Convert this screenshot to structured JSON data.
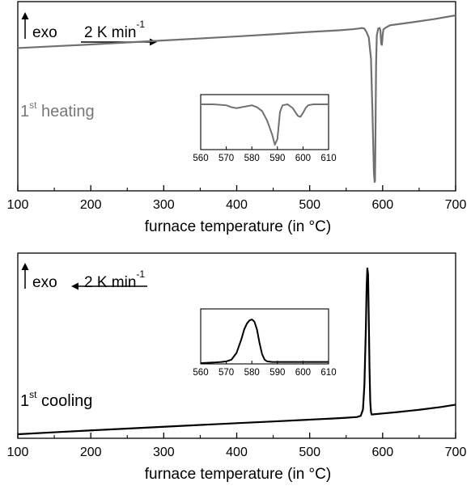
{
  "chart_data": [
    {
      "type": "line",
      "xlabel": "furnace temperature (in °C)",
      "xlim": [
        100,
        700
      ],
      "xticks": [
        100,
        200,
        300,
        400,
        500,
        600,
        700
      ],
      "y_ticks_shown": false,
      "annotations": {
        "exo": "exo",
        "rate_value": "2 K min",
        "rate_exponent": "-1",
        "rate_direction": "right",
        "run_number": "1",
        "run_ordinal": "st",
        "run_name": " heating"
      },
      "series_color": "#707070",
      "series": [
        {
          "x": [
            100,
            150,
            200,
            250,
            300,
            350,
            400,
            450,
            500,
            540,
            560,
            568,
            572,
            575,
            578,
            581,
            584,
            586,
            588,
            589,
            589.5,
            590,
            591,
            592,
            594,
            596,
            597,
            598,
            599,
            600,
            601,
            603,
            605,
            610,
            640,
            670,
            700
          ],
          "y": [
            0,
            1.7,
            3.4,
            5.3,
            7.2,
            9.1,
            11.0,
            13.1,
            15.3,
            16.8,
            17.9,
            18.6,
            19.0,
            18.4,
            15.0,
            10.0,
            -10.0,
            -60.0,
            -118.0,
            -127.0,
            -126.0,
            -95.0,
            -15.0,
            12.0,
            18.6,
            19.0,
            16.0,
            4.0,
            3.0,
            12.0,
            17.5,
            18.8,
            19.6,
            21.6,
            24.4,
            27.4,
            31.0
          ]
        }
      ],
      "inset": {
        "xlim": [
          560,
          610
        ],
        "xticks": [
          560,
          570,
          580,
          590,
          600,
          610
        ],
        "series": [
          {
            "x": [
              560,
              565,
              570,
              572,
              574,
              576,
              578,
              580,
              582,
              584,
              586,
              588,
              589,
              590,
              591,
              592,
              594,
              596,
              597,
              598,
              599,
              600,
              601,
              602,
              604,
              606,
              608,
              610
            ],
            "y": [
              0,
              0,
              -1,
              -3,
              -4,
              -3,
              -2,
              -1,
              -3,
              -7,
              -17,
              -32,
              -42,
              -36,
              -8,
              -1,
              0,
              -4,
              -8,
              -12,
              -13,
              -9,
              -4,
              -1,
              0,
              0,
              0,
              0
            ]
          }
        ]
      }
    },
    {
      "type": "line",
      "xlabel": "furnace temperature (in °C)",
      "xlim": [
        100,
        700
      ],
      "xticks": [
        100,
        200,
        300,
        400,
        500,
        600,
        700
      ],
      "y_ticks_shown": false,
      "annotations": {
        "exo": "exo",
        "rate_value": "2 K min",
        "rate_exponent": "-1",
        "rate_direction": "left",
        "run_number": "1",
        "run_ordinal": "st",
        "run_name": " cooling"
      },
      "series_color": "#000000",
      "series": [
        {
          "x": [
            100,
            150,
            200,
            250,
            300,
            350,
            400,
            450,
            500,
            530,
            550,
            565,
            570,
            573,
            575,
            577,
            578,
            579,
            580,
            581,
            582,
            583,
            584,
            585,
            590,
            600,
            620,
            650,
            680,
            700
          ],
          "y": [
            0,
            2.4,
            4.7,
            6.9,
            9.1,
            11.3,
            13.5,
            15.6,
            17.8,
            19.1,
            20.1,
            21.0,
            22.5,
            30.0,
            60.0,
            130.0,
            178.0,
            202.0,
            195.0,
            140.0,
            80.0,
            40.0,
            27.0,
            24.0,
            24.5,
            25.3,
            27.0,
            29.8,
            33.2,
            36.0
          ]
        }
      ],
      "inset": {
        "xlim": [
          560,
          610
        ],
        "xticks": [
          560,
          570,
          580,
          590,
          600,
          610
        ],
        "series": [
          {
            "x": [
              560,
              565,
              568,
              570,
              572,
              574,
              576,
              577,
              578,
              579,
              580,
              581,
              582,
              583,
              584,
              585,
              586,
              588,
              590,
              595,
              600,
              605,
              610
            ],
            "y": [
              0,
              0.5,
              1,
              1.5,
              3,
              9,
              22,
              30,
              35,
              38,
              39,
              37,
              30,
              18,
              8,
              3,
              1.5,
              1,
              1,
              1,
              1,
              1,
              1
            ]
          }
        ]
      }
    }
  ]
}
